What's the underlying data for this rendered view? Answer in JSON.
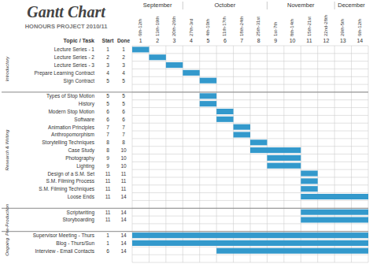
{
  "chart_data": {
    "type": "gantt",
    "title": "Gantt Chart",
    "subtitle": "HONOURS PROJECT 2010/11",
    "color": "#3399cc",
    "grid": true,
    "headers": [
      "Topic / Task",
      "Start",
      "Done"
    ],
    "weeks": [
      "1",
      "2",
      "3",
      "4",
      "5",
      "6",
      "7",
      "8",
      "9",
      "10",
      "11",
      "12",
      "13",
      "14"
    ],
    "week_labels": [
      "6th-12th",
      "13th-19th",
      "20th-26th",
      "27th-3rd",
      "4th-10th",
      "11th-17th",
      "18th-24th",
      "25th-31st",
      "1st-7th",
      "8th-14th",
      "15th-21st",
      "22nd-28th",
      "29th-5th",
      "6th-12th"
    ],
    "months": [
      {
        "label": "September",
        "start": 0,
        "end": 3
      },
      {
        "label": "October",
        "start": 3,
        "end": 8
      },
      {
        "label": "November",
        "start": 8,
        "end": 12
      },
      {
        "label": "December",
        "start": 12,
        "end": 14
      }
    ],
    "ylim": [
      0,
      28
    ],
    "sections": [
      {
        "label": "Introductory",
        "r_start": 0,
        "r_end": 6
      },
      {
        "label": "Research & Writing",
        "r_start": 6,
        "r_end": 21
      },
      {
        "label": "Pre-Production",
        "r_start": 21,
        "r_end": 24
      },
      {
        "label": "Ongoing",
        "r_start": 24,
        "r_end": 28
      }
    ],
    "sep_rows": [
      6,
      21,
      24
    ],
    "tasks": [
      {
        "name": "Lecture Series - 1",
        "start": 1,
        "done": 1,
        "row": 1,
        "bar_start": 1,
        "bar_end": 1
      },
      {
        "name": "Lecture Series - 2",
        "start": 2,
        "done": 2,
        "row": 2,
        "bar_start": 2,
        "bar_end": 2
      },
      {
        "name": "Lecture Series - 3",
        "start": 3,
        "done": 3,
        "row": 3,
        "bar_start": 3,
        "bar_end": 3
      },
      {
        "name": "Prepare Learning Contract",
        "start": 4,
        "done": 4,
        "row": 4,
        "bar_start": 4,
        "bar_end": 4
      },
      {
        "name": "Sign Contract",
        "start": 5,
        "done": 5,
        "row": 5,
        "bar_start": 5,
        "bar_end": 5
      },
      {
        "name": "Types of Stop Motion",
        "start": 5,
        "done": 5,
        "row": 7,
        "bar_start": 5,
        "bar_end": 5
      },
      {
        "name": "History",
        "start": 5,
        "done": 5,
        "row": 8,
        "bar_start": 5,
        "bar_end": 5
      },
      {
        "name": "Modern Stop Motion",
        "start": 6,
        "done": 6,
        "row": 9,
        "bar_start": 6,
        "bar_end": 6
      },
      {
        "name": "Software",
        "start": 6,
        "done": 6,
        "row": 10,
        "bar_start": 6,
        "bar_end": 6
      },
      {
        "name": "Animation Principles",
        "start": 7,
        "done": 7,
        "row": 11,
        "bar_start": 7,
        "bar_end": 7
      },
      {
        "name": "Anthropomorphism",
        "start": 7,
        "done": 7,
        "row": 12,
        "bar_start": 7,
        "bar_end": 7
      },
      {
        "name": "Storytelling Techniques",
        "start": 8,
        "done": 8,
        "row": 13,
        "bar_start": 8,
        "bar_end": 8
      },
      {
        "name": "Case Study",
        "start": 8,
        "done": 10,
        "row": 14,
        "bar_start": 8,
        "bar_end": 10
      },
      {
        "name": "Photography",
        "start": 9,
        "done": 10,
        "row": 15,
        "bar_start": 9,
        "bar_end": 10
      },
      {
        "name": "Lighting",
        "start": 9,
        "done": 10,
        "row": 16,
        "bar_start": 9,
        "bar_end": 10
      },
      {
        "name": "Design of a S.M. Set",
        "start": 11,
        "done": 11,
        "row": 17,
        "bar_start": 11,
        "bar_end": 11
      },
      {
        "name": "S.M. Filming Process",
        "start": 11,
        "done": 11,
        "row": 18,
        "bar_start": 11,
        "bar_end": 11
      },
      {
        "name": "S.M. Filming Techniques",
        "start": 11,
        "done": 11,
        "row": 19,
        "bar_start": 11,
        "bar_end": 11
      },
      {
        "name": "Loose Ends",
        "start": 11,
        "done": 14,
        "row": 20,
        "bar_start": 11,
        "bar_end": 14
      },
      {
        "name": "Scriptwriting",
        "start": 11,
        "done": 14,
        "row": 22,
        "bar_start": 11,
        "bar_end": 14
      },
      {
        "name": "Storyboarding",
        "start": 11,
        "done": 14,
        "row": 23,
        "bar_start": 11,
        "bar_end": 14
      },
      {
        "name": "Supervisor Meeting - Thurs",
        "start": 1,
        "done": 14,
        "row": 25,
        "bar_start": 1,
        "bar_end": 14
      },
      {
        "name": "Blog - Thurs/Sun",
        "start": 1,
        "done": 14,
        "row": 26,
        "bar_start": 1,
        "bar_end": 14
      },
      {
        "name": "Interview - Email Contacts",
        "start": 6,
        "done": 14,
        "row": 27,
        "bar_start": 6,
        "bar_end": 14
      }
    ]
  }
}
